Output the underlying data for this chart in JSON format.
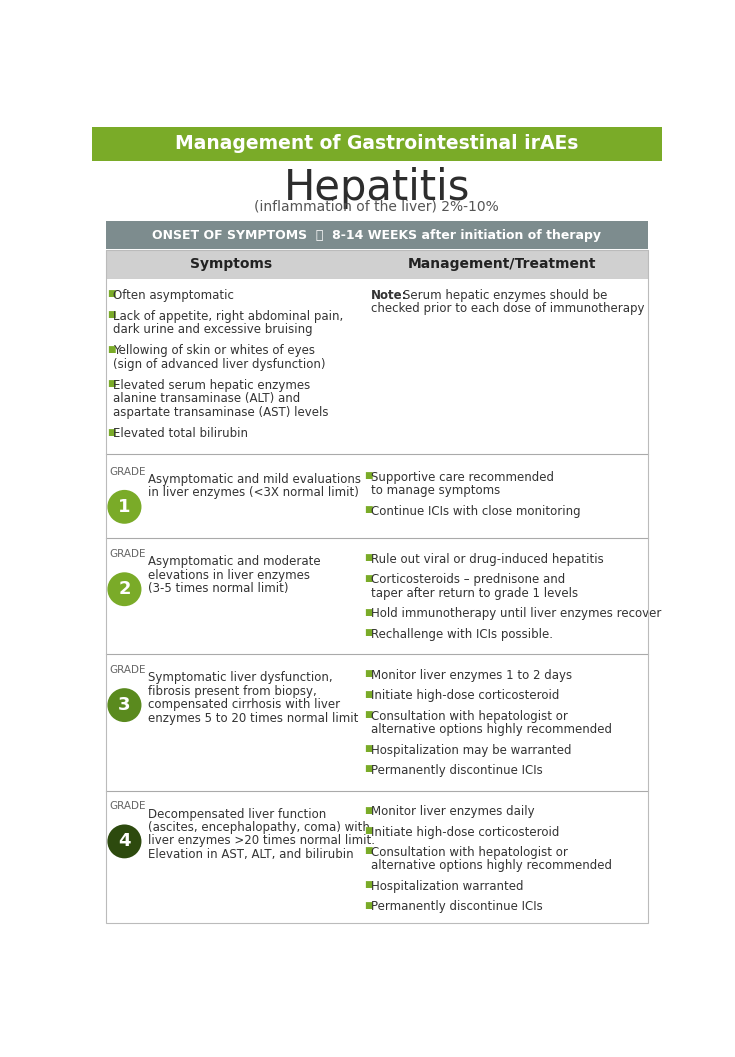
{
  "title_bar_text": "Management of Gastrointestinal irAEs",
  "title_bar_color": "#7aab28",
  "title_bar_text_color": "#ffffff",
  "main_title": "Hepatitis",
  "subtitle": "(inflammation of the liver) 2%-10%",
  "onset_bar_color": "#7d8c8e",
  "onset_text_bold": "ONSET OF SYMPTOMS  ⌛  8-14 WEEKS",
  "onset_text_normal": " after initiation of therapy",
  "onset_text_color": "#ffffff",
  "col_header_bg": "#d0d0d0",
  "col1_header": "Symptoms",
  "col2_header": "Management/Treatment",
  "bg_color": "#ffffff",
  "text_color": "#333333",
  "bullet_color": "#7aab28",
  "divider_color": "#aaaaaa",
  "grade_circle_colors": [
    "#7aab28",
    "#7aab28",
    "#5a8a1e",
    "#2d4a0e"
  ],
  "general_symptoms": [
    "Often asymptomatic",
    "Lack of appetite, right abdominal pain,\ndark urine and excessive bruising",
    "Yellowing of skin or whites of eyes\n(sign of advanced liver dysfunction)",
    "Elevated serum hepatic enzymes\nalanine transaminase (ALT) and\naspartate transaminase (AST) levels",
    "Elevated total bilirubin"
  ],
  "general_note_bold": "Note:",
  "general_note_line1": " Serum hepatic enzymes should be",
  "general_note_line2": "checked prior to each dose of immunotherapy",
  "grades": [
    {
      "number": "1",
      "symptom": "Asymptomatic and mild evaluations\nin liver enzymes (<3X normal limit)",
      "treatments": [
        "Supportive care recommended\nto manage symptoms",
        "Continue ICIs with close monitoring"
      ]
    },
    {
      "number": "2",
      "symptom": "Asymptomatic and moderate\nelevations in liver enzymes\n(3-5 times normal limit)",
      "treatments": [
        "Rule out viral or drug-induced hepatitis",
        "Corticosteroids – prednisone and\ntaper after return to grade 1 levels",
        "Hold immunotherapy until liver enzymes recover",
        "Rechallenge with ICIs possible."
      ]
    },
    {
      "number": "3",
      "symptom": "Symptomatic liver dysfunction,\nfibrosis present from biopsy,\ncompensated cirrhosis with liver\nenzymes 5 to 20 times normal limit",
      "treatments": [
        "Monitor liver enzymes 1 to 2 days",
        "Initiate high-dose corticosteroid",
        "Consultation with hepatologist or\nalternative options highly recommended",
        "Hospitalization may be warranted",
        "Permanently discontinue ICIs"
      ]
    },
    {
      "number": "4",
      "symptom": "Decompensated liver function\n(ascites, encephalopathy, coma) with\nliver enzymes >20 times normal limit.\nElevation in AST, ALT, and bilirubin",
      "treatments": [
        "Monitor liver enzymes daily",
        "Initiate high-dose corticosteroid",
        "Consultation with hepatologist or\nalternative options highly recommended",
        "Hospitalization warranted",
        "Permanently discontinue ICIs"
      ]
    }
  ]
}
